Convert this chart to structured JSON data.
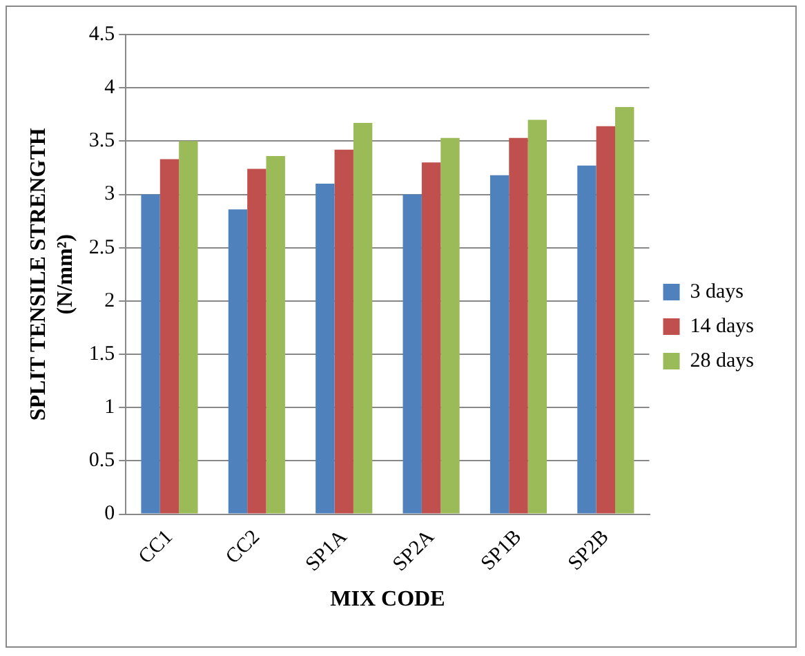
{
  "chart_data": {
    "type": "bar",
    "xlabel": "MIX CODE",
    "ylabel": "SPLIT TENSILE STRENGTH (N/mm²)",
    "categories": [
      "CC1",
      "CC2",
      "SP1A",
      "SP2A",
      "SP1B",
      "SP2B"
    ],
    "series": [
      {
        "name": "3 days",
        "color": "#4f81bd",
        "values": [
          3.0,
          2.86,
          3.1,
          3.0,
          3.18,
          3.27
        ]
      },
      {
        "name": "14 days",
        "color": "#c0504d",
        "values": [
          3.33,
          3.24,
          3.42,
          3.3,
          3.53,
          3.64
        ]
      },
      {
        "name": "28 days",
        "color": "#9bbb59",
        "values": [
          3.5,
          3.36,
          3.67,
          3.53,
          3.7,
          3.82
        ]
      }
    ],
    "ylim": [
      0,
      4.5
    ],
    "yticks": [
      0,
      0.5,
      1,
      1.5,
      2,
      2.5,
      3,
      3.5,
      4,
      4.5
    ],
    "grid": "y",
    "legend": "right"
  }
}
